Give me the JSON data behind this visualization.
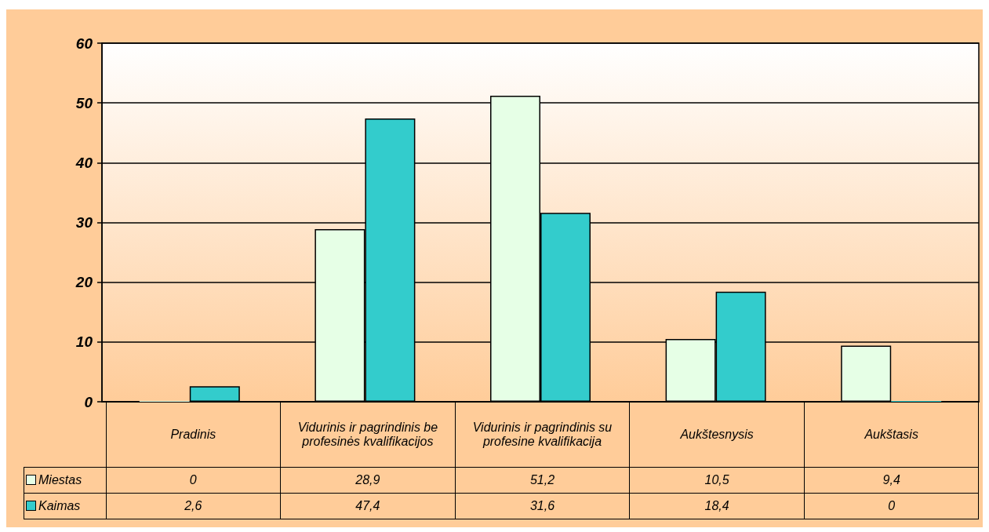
{
  "chart_data": {
    "type": "bar",
    "categories": [
      "Pradinis",
      "Vidurinis ir pagrindinis be profesinės kvalifikacijos",
      "Vidurinis ir pagrindinis su profesine kvalifikacija",
      "Aukštesnysis",
      "Aukštasis"
    ],
    "series": [
      {
        "name": "Miestas",
        "color": "#e6ffe6",
        "values": [
          0,
          28.9,
          51.2,
          10.5,
          9.4
        ],
        "value_labels": [
          "0",
          "28,9",
          "51,2",
          "10,5",
          "9,4"
        ]
      },
      {
        "name": "Kaimas",
        "color": "#33cccc",
        "values": [
          2.6,
          47.4,
          31.6,
          18.4,
          0
        ],
        "value_labels": [
          "2,6",
          "47,4",
          "31,6",
          "18,4",
          "0"
        ]
      }
    ],
    "ylim": [
      0,
      60
    ],
    "yticks": [
      0,
      10,
      20,
      30,
      40,
      50,
      60
    ],
    "grid": "y",
    "legend": "bottom left"
  }
}
